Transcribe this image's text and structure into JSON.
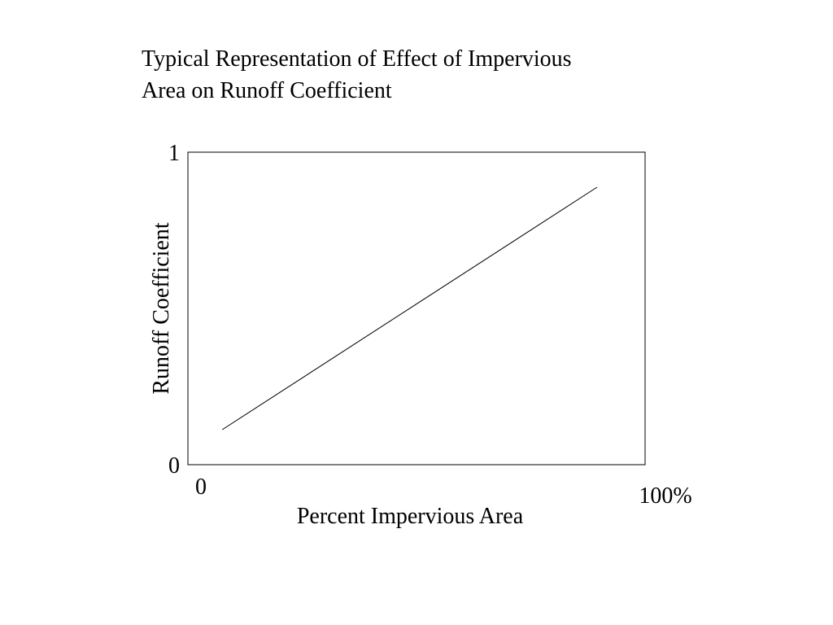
{
  "chart_data": {
    "type": "line",
    "title": [
      "Typical Representation of Effect of Impervious",
      "Area on Runoff Coefficient"
    ],
    "x_label": "Percent Impervious Area",
    "y_label": "Runoff Coefficient",
    "x": [
      7.5,
      89.5
    ],
    "values": [
      0.112,
      0.888
    ],
    "color": "#000000",
    "xlim": [
      0,
      100
    ],
    "xticks": [
      0,
      {
        "value": 100,
        "label": "100%"
      }
    ],
    "ylim": [
      0,
      1
    ],
    "yticks": [
      0,
      1
    ],
    "grid": false
  }
}
